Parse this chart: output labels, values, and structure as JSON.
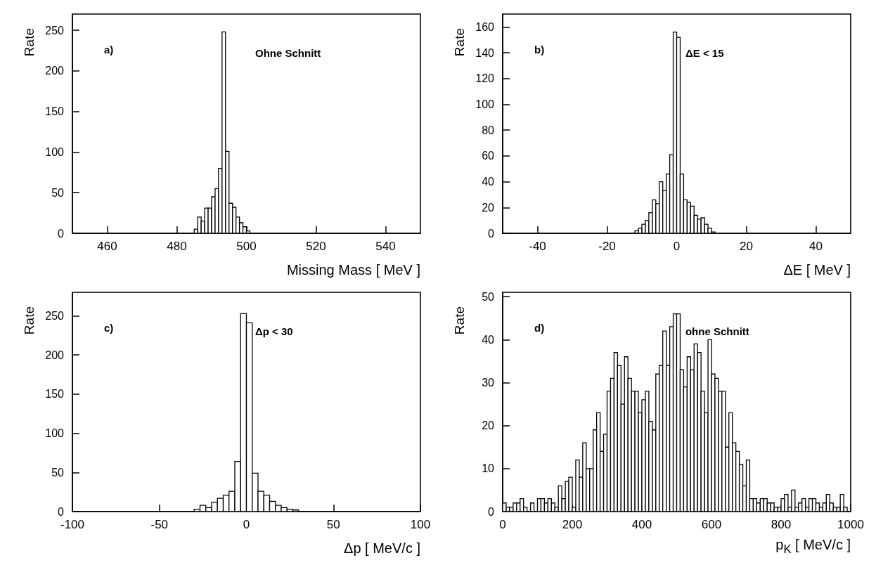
{
  "chart_data": [
    {
      "type": "histogram",
      "xlabel": "Missing Mass  [ MeV ]",
      "ylabel": "Rate",
      "annotations": [
        "a)",
        "Ohne Schnitt"
      ],
      "color": "#000000",
      "bins": [
        485,
        486,
        487,
        488,
        489,
        490,
        491,
        492,
        493,
        494,
        495,
        496,
        497,
        498,
        499,
        500,
        501
      ],
      "values": [
        5,
        20,
        15,
        31,
        31,
        45,
        55,
        80,
        248,
        101,
        37,
        32,
        20,
        13,
        8,
        3
      ],
      "xlim": [
        450,
        550
      ],
      "xticks": [
        460,
        480,
        500,
        520,
        540
      ],
      "ylim": [
        0,
        270
      ],
      "yticks": [
        0,
        50,
        100,
        150,
        200,
        250
      ]
    },
    {
      "type": "histogram",
      "xlabel": "ΔE [ MeV ]",
      "ylabel": "Rate",
      "annotations": [
        "b)",
        "ΔE < 15"
      ],
      "color": "#000000",
      "bins": [
        -12,
        -11,
        -10,
        -9,
        -8,
        -7,
        -6,
        -5,
        -4,
        -3,
        -2,
        -1,
        0,
        1,
        2,
        3,
        4,
        5,
        6,
        7,
        8,
        9,
        10,
        11
      ],
      "values": [
        2,
        4,
        7,
        10,
        16,
        26,
        23,
        40,
        33,
        46,
        61,
        156,
        152,
        46,
        26,
        24,
        21,
        14,
        11,
        12,
        7,
        4,
        1
      ],
      "xlim": [
        -50,
        50
      ],
      "xticks": [
        -40,
        -20,
        0,
        20,
        40
      ],
      "ylim": [
        0,
        170
      ],
      "yticks": [
        0,
        20,
        40,
        60,
        80,
        100,
        120,
        140,
        160
      ]
    },
    {
      "type": "histogram",
      "xlabel": "Δp [ MeV/c ]",
      "ylabel": "Rate",
      "annotations": [
        "c)",
        "Δp < 30"
      ],
      "color": "#000000",
      "bins": [
        -33.33,
        -30,
        -26.67,
        -23.33,
        -20,
        -16.67,
        -13.33,
        -10,
        -6.67,
        -3.33,
        0,
        3.33,
        6.67,
        10,
        13.33,
        16.67,
        20,
        23.33,
        26.67,
        30,
        33.33
      ],
      "values": [
        null,
        3,
        8,
        5,
        12,
        17,
        21,
        26,
        64,
        253,
        241,
        49,
        26,
        21,
        13,
        8,
        5,
        3,
        2,
        null
      ],
      "xlim": [
        -100,
        100
      ],
      "xticks": [
        -100,
        -50,
        0,
        50,
        100
      ],
      "ylim": [
        0,
        280
      ],
      "yticks": [
        0,
        50,
        100,
        150,
        200,
        250
      ]
    },
    {
      "type": "histogram",
      "xlabel": "p$_{K}$ [ MeV/c ]",
      "ylabel": "Rate",
      "annotations": [
        "d)",
        "ohne Schnitt"
      ],
      "color": "#000000",
      "bins": [
        0,
        10,
        20,
        30,
        40,
        50,
        60,
        70,
        80,
        90,
        100,
        110,
        120,
        130,
        140,
        150,
        160,
        170,
        180,
        190,
        200,
        210,
        220,
        230,
        240,
        250,
        260,
        270,
        280,
        290,
        300,
        310,
        320,
        330,
        340,
        350,
        360,
        370,
        380,
        390,
        400,
        410,
        420,
        430,
        440,
        450,
        460,
        470,
        480,
        490,
        500,
        510,
        520,
        530,
        540,
        550,
        560,
        570,
        580,
        590,
        600,
        610,
        620,
        630,
        640,
        650,
        660,
        670,
        680,
        690,
        700,
        710,
        720,
        730,
        740,
        750,
        760,
        770,
        780,
        790,
        800,
        810,
        820,
        830,
        840,
        850,
        860,
        870,
        880,
        890,
        900,
        910,
        920,
        930,
        940,
        950,
        960,
        970,
        980,
        990,
        1000
      ],
      "values": [
        2,
        1,
        1,
        2,
        2,
        3,
        1,
        0,
        2,
        0,
        3,
        3,
        2,
        3,
        2,
        1,
        6,
        3,
        7,
        8,
        1,
        12,
        8,
        16,
        10,
        10,
        19,
        23,
        14,
        18,
        28,
        31,
        37,
        34,
        25,
        36,
        31,
        28,
        28,
        23,
        26,
        28,
        21,
        19,
        32,
        34,
        42,
        34,
        43,
        46,
        46,
        33,
        29,
        36,
        33,
        39,
        37,
        28,
        23,
        40,
        32,
        31,
        28,
        28,
        15,
        23,
        16,
        14,
        11,
        6,
        12,
        3,
        3,
        2,
        3,
        3,
        2,
        2,
        1,
        1,
        3,
        4,
        1,
        5,
        1,
        2,
        3,
        1,
        3,
        3,
        2,
        1,
        2,
        4,
        2,
        1,
        1,
        4,
        1,
        0
      ],
      "xlim": [
        0,
        1000
      ],
      "xticks": [
        0,
        200,
        400,
        600,
        800,
        1000
      ],
      "ylim": [
        0,
        51
      ],
      "yticks": [
        0,
        10,
        20,
        30,
        40,
        50
      ]
    }
  ]
}
